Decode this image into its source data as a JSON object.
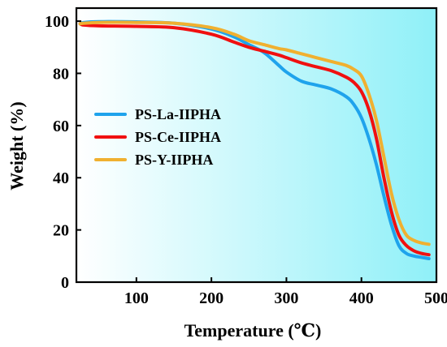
{
  "chart_data": {
    "type": "line",
    "xlabel": "Temperature (℃)",
    "ylabel": "Weight (%)",
    "xlim": [
      20,
      500
    ],
    "ylim": [
      0,
      105
    ],
    "xticks": [
      100,
      200,
      300,
      400,
      500
    ],
    "yticks": [
      0,
      20,
      40,
      60,
      80,
      100
    ],
    "xtick_labels": [
      "100",
      "200",
      "300",
      "400",
      "500"
    ],
    "ytick_labels": [
      "0",
      "20",
      "40",
      "60",
      "80",
      "100"
    ],
    "background_gradient": [
      "#ffffff",
      "#8ff0f8"
    ],
    "legend_position": "left-middle",
    "series": [
      {
        "name": "PS-La-IIPHA",
        "color": "#1fa3ec",
        "x": [
          25,
          30,
          50,
          100,
          150,
          200,
          230,
          250,
          270,
          290,
          300,
          320,
          340,
          360,
          380,
          390,
          400,
          410,
          420,
          430,
          440,
          450,
          460,
          470,
          480,
          490
        ],
        "y": [
          99,
          99.5,
          99.8,
          99.7,
          99.2,
          97,
          94,
          91,
          88,
          83,
          80.5,
          77,
          75.5,
          74,
          71,
          68,
          63,
          55,
          45,
          33,
          22,
          14,
          11,
          10,
          9.5,
          9
        ]
      },
      {
        "name": "PS-Ce-IIPHA",
        "color": "#f01010",
        "x": [
          25,
          30,
          50,
          100,
          150,
          200,
          230,
          250,
          270,
          290,
          300,
          320,
          340,
          360,
          380,
          390,
          400,
          410,
          420,
          430,
          440,
          450,
          460,
          470,
          480,
          490
        ],
        "y": [
          99,
          98.5,
          98.2,
          98,
          97.5,
          95,
          92,
          90,
          88.5,
          87,
          86,
          84,
          82.5,
          81,
          78.5,
          76.5,
          73,
          66,
          55,
          40,
          27,
          18,
          14,
          12,
          11,
          10.5
        ]
      },
      {
        "name": "PS-Y-IIPHA",
        "color": "#f0b030",
        "x": [
          25,
          30,
          50,
          100,
          150,
          200,
          230,
          250,
          270,
          290,
          300,
          320,
          340,
          360,
          380,
          390,
          400,
          410,
          420,
          430,
          440,
          450,
          460,
          470,
          480,
          490
        ],
        "y": [
          99,
          99.2,
          99.5,
          99.5,
          99.2,
          97.5,
          95,
          92.5,
          91,
          89.5,
          89,
          87.5,
          86,
          84.5,
          83,
          81.5,
          79,
          72,
          62,
          48,
          34,
          24,
          18,
          16,
          15,
          14.5
        ]
      }
    ]
  }
}
